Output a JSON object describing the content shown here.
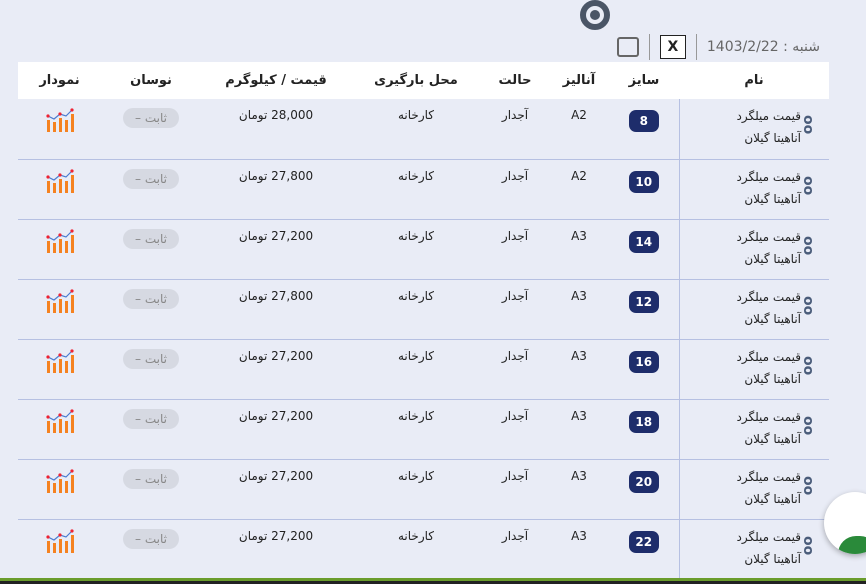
{
  "toolbar": {
    "date": "شنبه : 1403/2/22",
    "excel_label": "X"
  },
  "headers": [
    "نام",
    "سایز",
    "آنالیز",
    "حالت",
    "محل بارگیری",
    "قیمت / کیلوگرم",
    "نوسان",
    "نمودار"
  ],
  "rows": [
    {
      "name1": "قیمت میلگرد",
      "name2": "آناهیتا گیلان",
      "size": "8",
      "analysis": "A2",
      "state": "آجدار",
      "location": "کارخانه",
      "price": "28,000 تومان",
      "change": "ثابت –"
    },
    {
      "name1": "قیمت میلگرد",
      "name2": "آناهیتا گیلان",
      "size": "10",
      "analysis": "A2",
      "state": "آجدار",
      "location": "کارخانه",
      "price": "27,800 تومان",
      "change": "ثابت –"
    },
    {
      "name1": "قیمت میلگرد",
      "name2": "آناهیتا گیلان",
      "size": "14",
      "analysis": "A3",
      "state": "آجدار",
      "location": "کارخانه",
      "price": "27,200 تومان",
      "change": "ثابت –"
    },
    {
      "name1": "قیمت میلگرد",
      "name2": "آناهیتا گیلان",
      "size": "12",
      "analysis": "A3",
      "state": "آجدار",
      "location": "کارخانه",
      "price": "27,800 تومان",
      "change": "ثابت –"
    },
    {
      "name1": "قیمت میلگرد",
      "name2": "آناهیتا گیلان",
      "size": "16",
      "analysis": "A3",
      "state": "آجدار",
      "location": "کارخانه",
      "price": "27,200 تومان",
      "change": "ثابت –"
    },
    {
      "name1": "قیمت میلگرد",
      "name2": "آناهیتا گیلان",
      "size": "18",
      "analysis": "A3",
      "state": "آجدار",
      "location": "کارخانه",
      "price": "27,200 تومان",
      "change": "ثابت –"
    },
    {
      "name1": "قیمت میلگرد",
      "name2": "آناهیتا گیلان",
      "size": "20",
      "analysis": "A3",
      "state": "آجدار",
      "location": "کارخانه",
      "price": "27,200 تومان",
      "change": "ثابت –"
    },
    {
      "name1": "قیمت میلگرد",
      "name2": "آناهیتا گیلان",
      "size": "22",
      "analysis": "A3",
      "state": "آجدار",
      "location": "کارخانه",
      "price": "27,200 تومان",
      "change": "ثابت –"
    }
  ],
  "colors": {
    "size_badge": "#1e2d6b",
    "chart_icon": "#f58220",
    "accent_line": "#6a9c2c"
  }
}
